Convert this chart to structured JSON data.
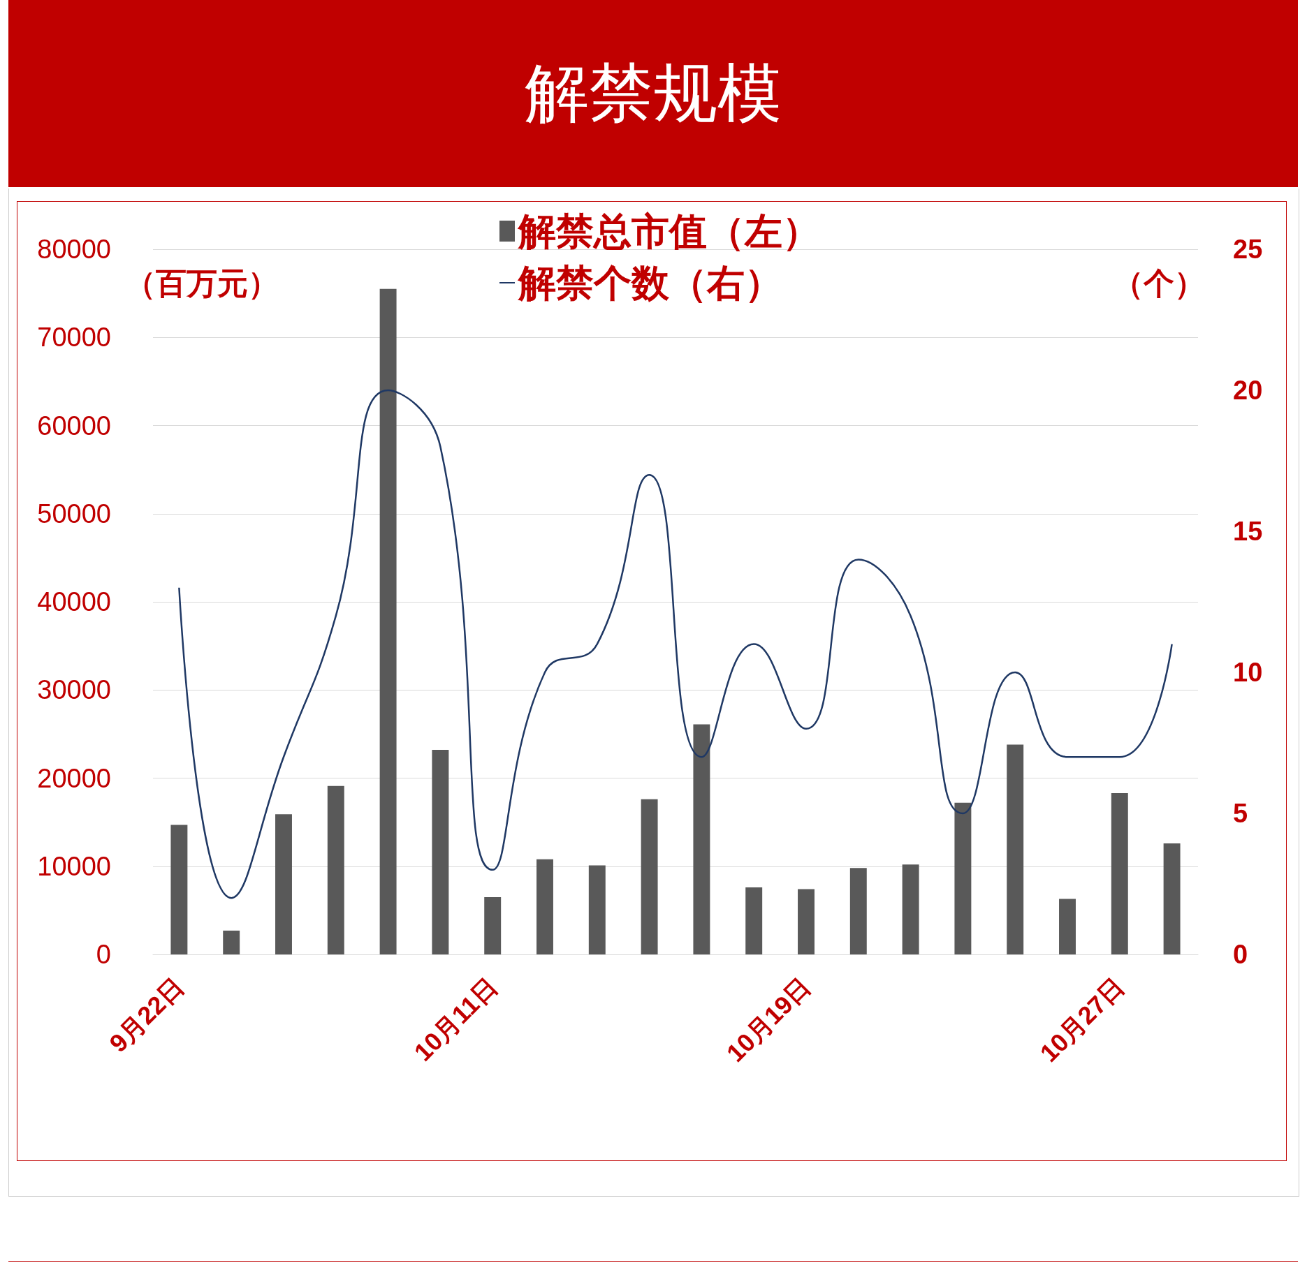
{
  "chart_data": {
    "type": "bar",
    "title": "解禁规模",
    "categories": [
      "9月22日",
      null,
      null,
      null,
      null,
      null,
      "10月11日",
      null,
      null,
      null,
      null,
      null,
      "10月19日",
      null,
      null,
      null,
      null,
      null,
      "10月27日",
      null
    ],
    "series": [
      {
        "name": "解禁总市值（左）",
        "color": "#595959",
        "values": [
          14700,
          2700,
          15900,
          19100,
          75500,
          23200,
          6500,
          10800,
          10100,
          17600,
          26100,
          7600,
          7400,
          9800,
          10200,
          17200,
          23800,
          6300,
          18300,
          12600
        ]
      },
      {
        "name": "解禁个数（右）",
        "type": "line",
        "axis": "y2",
        "color": "#1f3864",
        "values": [
          13,
          2,
          7,
          12,
          20,
          18,
          3,
          10,
          11,
          17,
          7,
          11,
          8,
          14,
          12,
          5,
          10,
          7,
          7,
          11
        ]
      }
    ],
    "ylabel": "（百万元）",
    "y2label": "（个）",
    "ylim": [
      0,
      80000
    ],
    "yticks": [
      0,
      10000,
      20000,
      30000,
      40000,
      50000,
      60000,
      70000,
      80000
    ],
    "y2lim": [
      0,
      25
    ],
    "y2ticks": [
      0,
      5,
      10,
      15,
      20,
      25
    ],
    "grid": "y",
    "legend": "top",
    "marker": "none"
  }
}
